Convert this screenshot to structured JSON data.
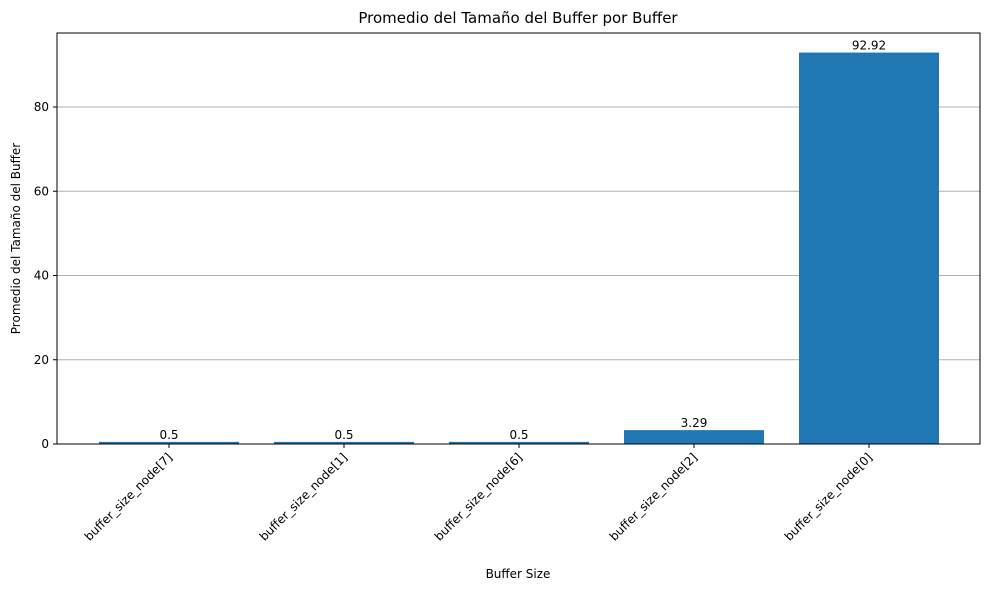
{
  "chart_data": {
    "type": "bar",
    "title": "Promedio del Tamaño del Buffer por Buffer",
    "xlabel": "Buffer Size",
    "ylabel": "Promedio del Tamaño del Buffer",
    "categories": [
      "buffer_size_node[7]",
      "buffer_size_node[1]",
      "buffer_size_node[6]",
      "buffer_size_node[2]",
      "buffer_size_node[0]"
    ],
    "values": [
      0.5,
      0.5,
      0.5,
      3.29,
      92.92
    ],
    "data_labels": [
      "0.5",
      "0.5",
      "0.5",
      "3.29",
      "92.92"
    ],
    "ylim": [
      0,
      97.57
    ],
    "yticks": [
      0,
      20,
      40,
      60,
      80
    ],
    "ytick_labels": [
      "0",
      "20",
      "40",
      "60",
      "80"
    ],
    "grid": "y-major",
    "bar_color": "#1f77b4",
    "grid_color": "#b0b0b0"
  }
}
